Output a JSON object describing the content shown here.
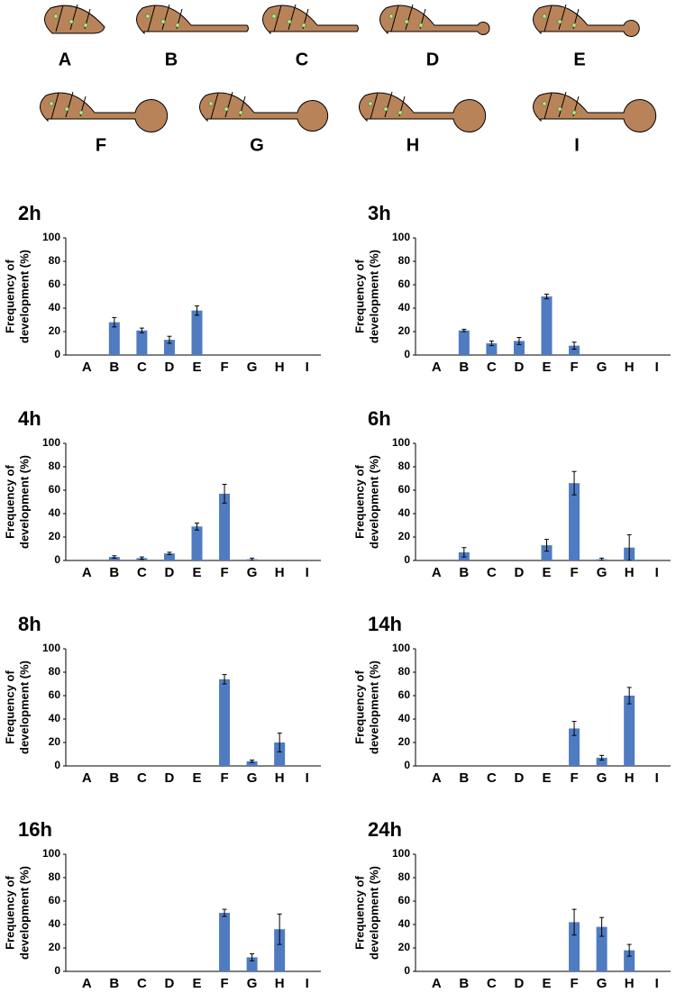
{
  "illustration": {
    "labels": [
      "A",
      "B",
      "C",
      "D",
      "E",
      "F",
      "G",
      "H",
      "I"
    ]
  },
  "chart_data": [
    {
      "type": "bar",
      "title": "2h",
      "ylabel": [
        "Frequency of",
        "development (%)"
      ],
      "categories": [
        "A",
        "B",
        "C",
        "D",
        "E",
        "F",
        "G",
        "H",
        "I"
      ],
      "values": [
        0,
        28,
        21,
        13,
        38,
        0,
        0,
        0,
        0
      ],
      "errors": [
        0,
        4,
        2,
        3,
        4,
        0,
        0,
        0,
        0
      ],
      "color": "#4f7bc1",
      "ylim": [
        0,
        100
      ],
      "yticks": [
        0,
        20,
        40,
        60,
        80,
        100
      ]
    },
    {
      "type": "bar",
      "title": "3h",
      "ylabel": [
        "Frequency of",
        "development (%)"
      ],
      "categories": [
        "A",
        "B",
        "C",
        "D",
        "E",
        "F",
        "G",
        "H",
        "I"
      ],
      "values": [
        0,
        21,
        10,
        12,
        50,
        8,
        0,
        0,
        0
      ],
      "errors": [
        0,
        1,
        2,
        3,
        2,
        3,
        0,
        0,
        0
      ],
      "color": "#4f7bc1",
      "ylim": [
        0,
        100
      ],
      "yticks": [
        0,
        20,
        40,
        60,
        80,
        100
      ]
    },
    {
      "type": "bar",
      "title": "4h",
      "ylabel": [
        "Frequency of",
        "development (%)"
      ],
      "categories": [
        "A",
        "B",
        "C",
        "D",
        "E",
        "F",
        "G",
        "H",
        "I"
      ],
      "values": [
        0,
        3,
        2,
        6,
        29,
        57,
        1,
        0,
        0
      ],
      "errors": [
        0,
        1,
        1,
        1,
        3,
        8,
        1,
        0,
        0
      ],
      "color": "#4f7bc1",
      "ylim": [
        0,
        100
      ],
      "yticks": [
        0,
        20,
        40,
        60,
        80,
        100
      ]
    },
    {
      "type": "bar",
      "title": "6h",
      "ylabel": [
        "Frequency of",
        "development (%)"
      ],
      "categories": [
        "A",
        "B",
        "C",
        "D",
        "E",
        "F",
        "G",
        "H",
        "I"
      ],
      "values": [
        0,
        7,
        0,
        0,
        13,
        66,
        1,
        11,
        0
      ],
      "errors": [
        0,
        4,
        0,
        0,
        5,
        10,
        1,
        11,
        0
      ],
      "color": "#4f7bc1",
      "ylim": [
        0,
        100
      ],
      "yticks": [
        0,
        20,
        40,
        60,
        80,
        100
      ]
    },
    {
      "type": "bar",
      "title": "8h",
      "ylabel": [
        "Frequency of",
        "development (%)"
      ],
      "categories": [
        "A",
        "B",
        "C",
        "D",
        "E",
        "F",
        "G",
        "H",
        "I"
      ],
      "values": [
        0,
        0,
        0,
        0,
        0,
        74,
        4,
        20,
        0
      ],
      "errors": [
        0,
        0,
        0,
        0,
        0,
        4,
        1,
        8,
        0
      ],
      "color": "#4f7bc1",
      "ylim": [
        0,
        100
      ],
      "yticks": [
        0,
        20,
        40,
        60,
        80,
        100
      ]
    },
    {
      "type": "bar",
      "title": "14h",
      "ylabel": [
        "Frequency of",
        "development (%)"
      ],
      "categories": [
        "A",
        "B",
        "C",
        "D",
        "E",
        "F",
        "G",
        "H",
        "I"
      ],
      "values": [
        0,
        0,
        0,
        0,
        0,
        32,
        7,
        60,
        0
      ],
      "errors": [
        0,
        0,
        0,
        0,
        0,
        6,
        2,
        7,
        0
      ],
      "color": "#4f7bc1",
      "ylim": [
        0,
        100
      ],
      "yticks": [
        0,
        20,
        40,
        60,
        80,
        100
      ]
    },
    {
      "type": "bar",
      "title": "16h",
      "ylabel": [
        "Frequency of",
        "development (%)"
      ],
      "categories": [
        "A",
        "B",
        "C",
        "D",
        "E",
        "F",
        "G",
        "H",
        "I"
      ],
      "values": [
        0,
        0,
        0,
        0,
        0,
        50,
        12,
        36,
        0
      ],
      "errors": [
        0,
        0,
        0,
        0,
        0,
        3,
        3,
        13,
        0
      ],
      "color": "#4f7bc1",
      "ylim": [
        0,
        100
      ],
      "yticks": [
        0,
        20,
        40,
        60,
        80,
        100
      ]
    },
    {
      "type": "bar",
      "title": "24h",
      "ylabel": [
        "Frequency of",
        "development (%)"
      ],
      "categories": [
        "A",
        "B",
        "C",
        "D",
        "E",
        "F",
        "G",
        "H",
        "I"
      ],
      "values": [
        0,
        0,
        0,
        0,
        0,
        42,
        38,
        18,
        0
      ],
      "errors": [
        0,
        0,
        0,
        0,
        0,
        11,
        8,
        5,
        0
      ],
      "color": "#4f7bc1",
      "ylim": [
        0,
        100
      ],
      "yticks": [
        0,
        20,
        40,
        60,
        80,
        100
      ]
    }
  ]
}
